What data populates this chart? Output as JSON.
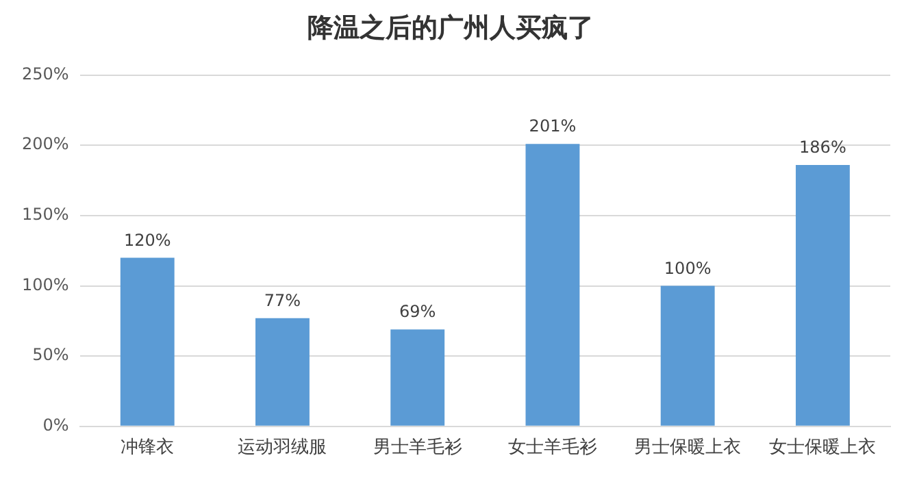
{
  "chart_data": {
    "type": "bar",
    "title": "降温之后的广州人买疯了",
    "categories": [
      "冲锋衣",
      "运动羽绒服",
      "男士羊毛衫",
      "女士羊毛衫",
      "男士保暖上衣",
      "女士保暖上衣"
    ],
    "values": [
      120,
      77,
      69,
      201,
      100,
      186
    ],
    "value_labels": [
      "120%",
      "77%",
      "69%",
      "201%",
      "100%",
      "186%"
    ],
    "color": "#5b9bd5",
    "ylim": [
      0,
      250
    ],
    "yticks": [
      {
        "value": 0,
        "label": "0%"
      },
      {
        "value": 50,
        "label": "50%"
      },
      {
        "value": 100,
        "label": "100%"
      },
      {
        "value": 150,
        "label": "150%"
      },
      {
        "value": 200,
        "label": "200%"
      },
      {
        "value": 250,
        "label": "250%"
      }
    ],
    "grid": "y"
  }
}
